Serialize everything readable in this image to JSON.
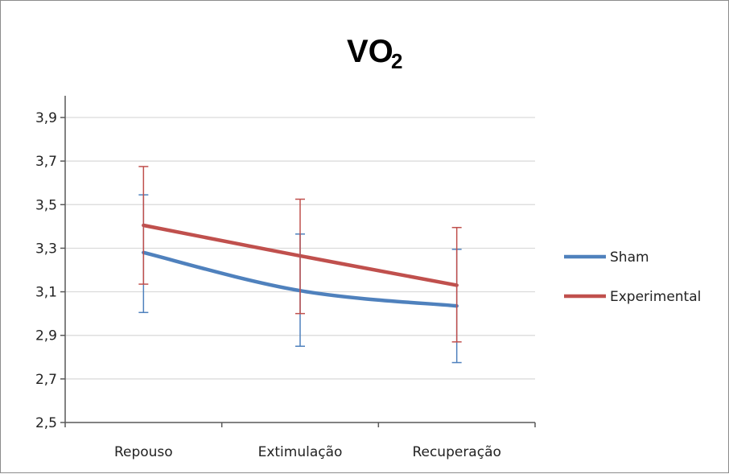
{
  "chart_data": {
    "type": "line",
    "title": "VO",
    "title_subscript": "2",
    "categories": [
      "Repouso",
      "Extimulação",
      "Recuperação"
    ],
    "ylim": [
      2.5,
      3.9
    ],
    "yticks": [
      "3,9",
      "3,7",
      "3,5",
      "3,3",
      "3,1",
      "2,9",
      "2,7",
      "2,5"
    ],
    "ytick_values": [
      3.9,
      3.7,
      3.5,
      3.3,
      3.1,
      2.9,
      2.7,
      2.5
    ],
    "grid": true,
    "legend_position": "right",
    "series": [
      {
        "name": "Sham",
        "color": "#4f81bd",
        "values": [
          3.28,
          3.105,
          3.035
        ],
        "err_high": [
          3.545,
          3.365,
          3.295
        ],
        "err_low": [
          3.005,
          2.85,
          2.775
        ]
      },
      {
        "name": "Experimental",
        "color": "#c0504d",
        "values": [
          3.405,
          3.265,
          3.13
        ],
        "err_high": [
          3.675,
          3.525,
          3.395
        ],
        "err_low": [
          3.135,
          3.0,
          2.87
        ]
      }
    ]
  }
}
